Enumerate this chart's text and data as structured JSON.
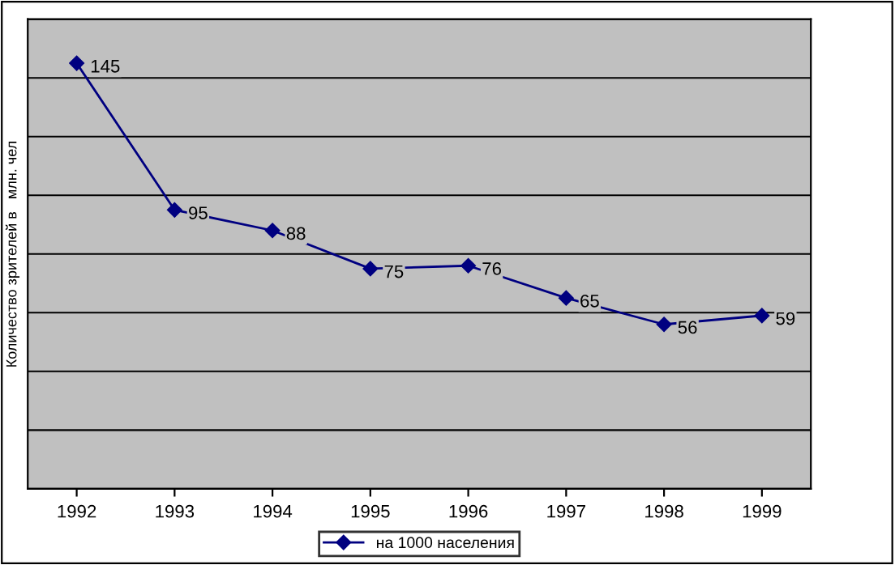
{
  "chart_data": {
    "type": "line",
    "ylabel": "Количество зрителей в   млн. чел",
    "categories": [
      "1992",
      "1993",
      "1994",
      "1995",
      "1996",
      "1997",
      "1998",
      "1999"
    ],
    "series": [
      {
        "name": "на 1000 населения",
        "color": "#000080",
        "values": [
          145,
          95,
          88,
          75,
          76,
          65,
          56,
          59
        ]
      }
    ],
    "ylim": [
      0,
      160
    ],
    "yticks": [
      {
        "value": 0,
        "label": null
      },
      {
        "value": 20,
        "label": null
      },
      {
        "value": 40,
        "label": null
      },
      {
        "value": 60,
        "label": null
      },
      {
        "value": 80,
        "label": null
      },
      {
        "value": 100,
        "label": null
      },
      {
        "value": 120,
        "label": null
      },
      {
        "value": 140,
        "label": null
      },
      {
        "value": 160,
        "label": null
      }
    ],
    "tick_labels": "x",
    "grid": "y",
    "legend": "bottom",
    "marker": "diamond",
    "line_style": "solid",
    "data_labels": true
  }
}
